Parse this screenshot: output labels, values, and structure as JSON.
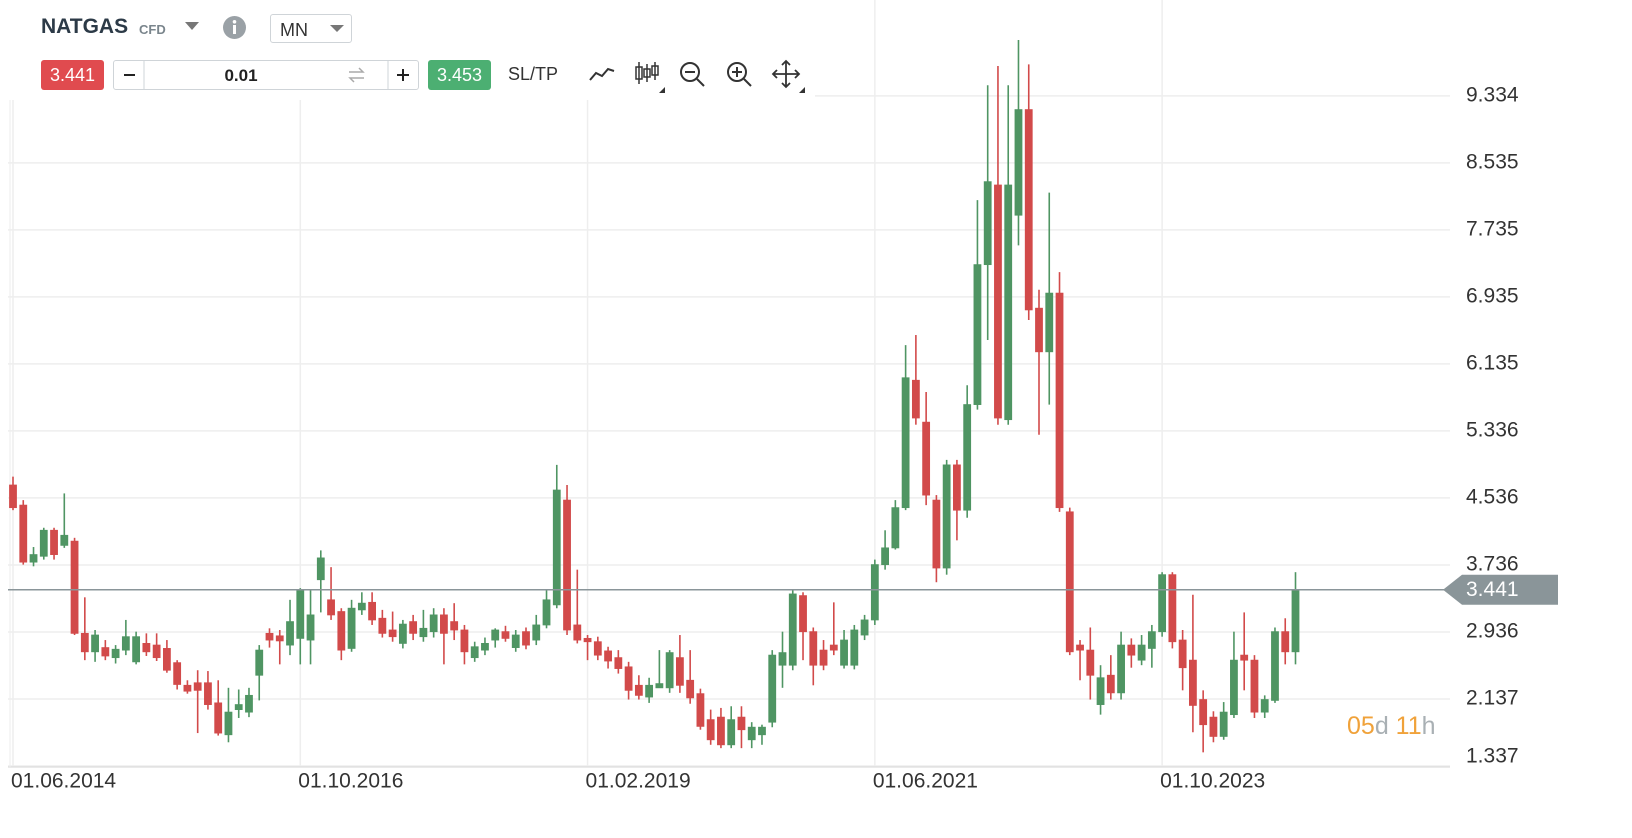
{
  "toolbar": {
    "symbol": "NATGAS",
    "symbol_type": "CFD",
    "timeframe": "MN",
    "sell_price": 3.441,
    "lot_size": 0.01,
    "buy_price": 3.453,
    "sltp_label": "SL/TP"
  },
  "countdown": {
    "days": "05",
    "days_unit": "d",
    "hours": "11",
    "hours_unit": "h"
  },
  "chart_data": {
    "type": "candlestick",
    "x": [
      "01.06.2014",
      "01.07.2014",
      "01.08.2014",
      "01.09.2014",
      "01.10.2014",
      "01.11.2014",
      "01.12.2014",
      "01.01.2015",
      "01.02.2015",
      "01.03.2015",
      "01.04.2015",
      "01.05.2015",
      "01.06.2015",
      "01.07.2015",
      "01.08.2015",
      "01.09.2015",
      "01.10.2015",
      "01.11.2015",
      "01.12.2015",
      "01.01.2016",
      "01.02.2016",
      "01.03.2016",
      "01.04.2016",
      "01.05.2016",
      "01.06.2016",
      "01.07.2016",
      "01.08.2016",
      "01.09.2016",
      "01.10.2016",
      "01.11.2016",
      "01.12.2016",
      "01.01.2017",
      "01.02.2017",
      "01.03.2017",
      "01.04.2017",
      "01.05.2017",
      "01.06.2017",
      "01.07.2017",
      "01.08.2017",
      "01.09.2017",
      "01.10.2017",
      "01.11.2017",
      "01.12.2017",
      "01.01.2018",
      "01.02.2018",
      "01.03.2018",
      "01.04.2018",
      "01.05.2018",
      "01.06.2018",
      "01.07.2018",
      "01.08.2018",
      "01.09.2018",
      "01.10.2018",
      "01.11.2018",
      "01.12.2018",
      "01.01.2019",
      "01.02.2019",
      "01.03.2019",
      "01.04.2019",
      "01.05.2019",
      "01.06.2019",
      "01.07.2019",
      "01.08.2019",
      "01.09.2019",
      "01.10.2019",
      "01.11.2019",
      "01.12.2019",
      "01.01.2020",
      "01.02.2020",
      "01.03.2020",
      "01.04.2020",
      "01.05.2020",
      "01.06.2020",
      "01.07.2020",
      "01.08.2020",
      "01.09.2020",
      "01.10.2020",
      "01.11.2020",
      "01.12.2020",
      "01.01.2021",
      "01.02.2021",
      "01.03.2021",
      "01.04.2021",
      "01.05.2021",
      "01.06.2021",
      "01.07.2021",
      "01.08.2021",
      "01.09.2021",
      "01.10.2021",
      "01.11.2021",
      "01.12.2021",
      "01.01.2022",
      "01.02.2022",
      "01.03.2022",
      "01.04.2022",
      "01.05.2022",
      "01.06.2022",
      "01.07.2022",
      "01.08.2022",
      "01.09.2022",
      "01.10.2022",
      "01.11.2022",
      "01.12.2022",
      "01.01.2023",
      "01.02.2023",
      "01.03.2023",
      "01.04.2023",
      "01.05.2023",
      "01.06.2023",
      "01.07.2023",
      "01.08.2023",
      "01.09.2023",
      "01.10.2023",
      "01.11.2023",
      "01.12.2023",
      "01.01.2024",
      "01.02.2024",
      "01.03.2024",
      "01.04.2024",
      "01.05.2024",
      "01.06.2024",
      "01.07.2024",
      "01.08.2024",
      "01.09.2024",
      "01.10.2024",
      "01.11.2024"
    ],
    "open": [
      4.69,
      4.45,
      3.77,
      3.84,
      4.15,
      3.97,
      4.02,
      2.92,
      2.7,
      2.75,
      2.63,
      2.72,
      2.58,
      2.8,
      2.78,
      2.74,
      2.57,
      2.3,
      2.33,
      2.33,
      2.09,
      1.71,
      2.01,
      1.98,
      2.42,
      2.92,
      2.89,
      2.78,
      2.86,
      2.84,
      3.56,
      3.32,
      3.18,
      2.74,
      3.2,
      3.29,
      3.1,
      2.96,
      2.8,
      3.06,
      2.88,
      2.94,
      3.14,
      3.06,
      2.96,
      2.63,
      2.72,
      2.84,
      2.94,
      2.75,
      2.94,
      2.84,
      3.02,
      3.26,
      4.51,
      3.02,
      2.86,
      2.82,
      2.71,
      2.63,
      2.52,
      2.3,
      2.16,
      2.27,
      2.27,
      2.63,
      2.36,
      2.2,
      1.89,
      1.92,
      1.59,
      1.92,
      1.65,
      1.71,
      1.86,
      2.54,
      2.54,
      3.37,
      2.94,
      2.72,
      2.78,
      2.54,
      2.54,
      2.9,
      3.08,
      3.74,
      3.94,
      4.42,
      5.94,
      5.44,
      4.51,
      3.7,
      4.93,
      4.39,
      5.65,
      7.32,
      8.27,
      5.47,
      7.91,
      9.17,
      6.8,
      6.28,
      6.98,
      4.37,
      2.78,
      2.72,
      2.07,
      2.42,
      2.21,
      2.78,
      2.6,
      2.74,
      2.94,
      3.62,
      2.84,
      2.6,
      2.13,
      1.92,
      1.69,
      1.95,
      2.66,
      2.6,
      1.98,
      2.12,
      2.94,
      2.7
    ],
    "high": [
      4.79,
      4.51,
      3.95,
      4.18,
      4.18,
      4.59,
      4.06,
      3.35,
      2.96,
      2.84,
      2.78,
      3.08,
      2.94,
      2.92,
      2.92,
      2.84,
      2.6,
      2.36,
      2.48,
      2.47,
      2.36,
      2.27,
      2.25,
      2.27,
      2.78,
      2.98,
      2.96,
      3.32,
      3.46,
      3.44,
      3.91,
      3.71,
      3.22,
      3.32,
      3.41,
      3.41,
      3.2,
      3.18,
      3.08,
      3.14,
      3.2,
      3.22,
      3.22,
      3.28,
      3.02,
      2.82,
      2.87,
      2.98,
      3.01,
      2.96,
      2.99,
      3.14,
      3.44,
      4.93,
      4.69,
      3.68,
      2.9,
      2.88,
      2.76,
      2.72,
      2.58,
      2.42,
      2.39,
      2.72,
      2.72,
      2.9,
      2.72,
      2.26,
      2.01,
      2.03,
      2.05,
      2.05,
      1.86,
      1.83,
      2.72,
      2.94,
      3.44,
      3.41,
      2.99,
      2.84,
      3.29,
      2.96,
      3.02,
      3.14,
      3.8,
      4.15,
      4.51,
      6.36,
      6.48,
      5.8,
      4.57,
      4.99,
      4.99,
      5.88,
      8.09,
      9.46,
      9.69,
      9.46,
      10.0,
      9.71,
      7.02,
      8.18,
      7.23,
      4.42,
      2.84,
      2.99,
      2.54,
      2.66,
      2.94,
      2.86,
      2.9,
      3.02,
      3.65,
      3.65,
      2.96,
      3.38,
      2.24,
      1.99,
      2.1,
      2.94,
      3.17,
      2.66,
      2.18,
      2.99,
      3.1,
      3.65
    ],
    "low": [
      4.39,
      3.74,
      3.72,
      3.8,
      3.8,
      3.94,
      2.9,
      2.6,
      2.58,
      2.6,
      2.56,
      2.66,
      2.55,
      2.65,
      2.59,
      2.45,
      2.25,
      2.2,
      1.73,
      2.01,
      1.7,
      1.62,
      1.91,
      1.92,
      2.12,
      2.75,
      2.55,
      2.66,
      2.55,
      2.55,
      3.17,
      3.08,
      2.6,
      2.7,
      3.14,
      3.02,
      2.87,
      2.82,
      2.74,
      2.84,
      2.82,
      2.87,
      2.55,
      2.84,
      2.55,
      2.58,
      2.66,
      2.75,
      2.82,
      2.7,
      2.73,
      2.78,
      2.98,
      3.22,
      2.9,
      2.8,
      2.6,
      2.6,
      2.5,
      2.44,
      2.13,
      2.13,
      2.09,
      2.27,
      2.21,
      2.21,
      2.08,
      1.77,
      1.59,
      1.55,
      1.55,
      1.55,
      1.55,
      1.59,
      1.8,
      2.27,
      2.48,
      2.6,
      2.3,
      2.48,
      2.66,
      2.5,
      2.49,
      2.84,
      3.02,
      3.68,
      3.92,
      4.39,
      5.41,
      4.45,
      3.53,
      3.62,
      4.03,
      4.3,
      5.59,
      6.42,
      5.41,
      5.41,
      7.55,
      6.66,
      5.29,
      5.65,
      4.37,
      2.66,
      2.36,
      2.13,
      1.95,
      2.13,
      2.13,
      2.51,
      2.54,
      2.51,
      2.88,
      2.74,
      2.24,
      1.74,
      1.5,
      1.62,
      1.65,
      1.91,
      2.24,
      1.91,
      1.91,
      2.09,
      2.55,
      2.55
    ],
    "close": [
      4.42,
      3.77,
      3.86,
      4.15,
      3.86,
      4.09,
      2.92,
      2.7,
      2.9,
      2.65,
      2.73,
      2.88,
      2.88,
      2.7,
      2.63,
      2.48,
      2.31,
      2.23,
      2.24,
      2.07,
      1.73,
      1.98,
      2.07,
      2.18,
      2.72,
      2.84,
      2.83,
      3.06,
      3.44,
      3.14,
      3.82,
      3.14,
      2.72,
      3.22,
      3.28,
      3.08,
      2.92,
      2.88,
      3.03,
      2.92,
      2.98,
      3.14,
      2.92,
      2.96,
      2.7,
      2.76,
      2.8,
      2.96,
      2.86,
      2.9,
      2.78,
      3.02,
      3.32,
      4.63,
      2.96,
      2.84,
      2.82,
      2.66,
      2.59,
      2.5,
      2.24,
      2.18,
      2.3,
      2.32,
      2.69,
      2.3,
      2.15,
      1.81,
      1.65,
      1.59,
      1.89,
      1.77,
      1.8,
      1.8,
      2.66,
      2.69,
      3.39,
      2.94,
      2.54,
      2.54,
      2.72,
      2.84,
      2.96,
      3.08,
      3.74,
      3.94,
      4.42,
      5.97,
      5.49,
      4.57,
      3.7,
      4.93,
      4.39,
      5.65,
      7.32,
      8.31,
      5.49,
      8.27,
      9.17,
      6.78,
      6.28,
      6.98,
      4.42,
      2.7,
      2.72,
      2.42,
      2.39,
      2.21,
      2.78,
      2.66,
      2.78,
      2.94,
      3.62,
      2.82,
      2.51,
      2.06,
      1.83,
      1.69,
      1.98,
      2.6,
      2.6,
      1.98,
      2.13,
      2.94,
      2.7,
      3.44
    ],
    "up_color": "#4f9563",
    "down_color": "#d24a4a",
    "last_price": 3.441,
    "last_price_color": "#8a9599",
    "ylim": [
      1.337,
      10.12
    ],
    "yticks": [
      1.337,
      2.137,
      2.936,
      3.736,
      4.536,
      5.336,
      6.135,
      6.935,
      7.735,
      8.535,
      9.334
    ],
    "xticks": [
      "01.06.2014",
      "01.10.2016",
      "01.02.2019",
      "01.06.2021",
      "01.10.2023"
    ],
    "grid": true
  }
}
